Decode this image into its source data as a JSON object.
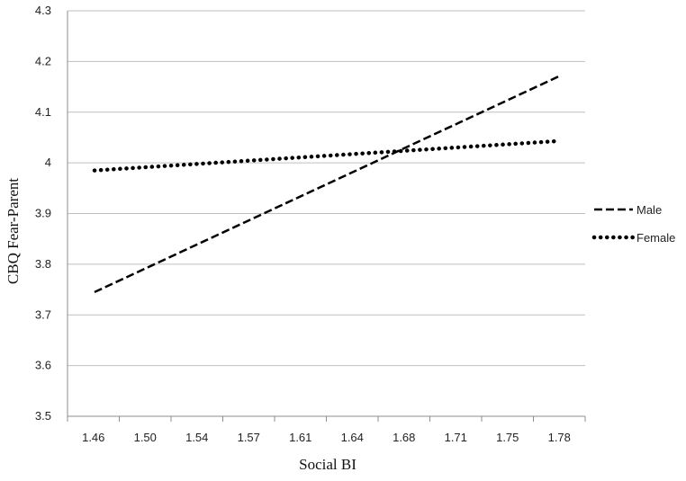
{
  "chart_data": {
    "type": "line",
    "title": "",
    "xlabel": "Social BI",
    "ylabel": "CBQ Fear-Parent",
    "categories": [
      "1.46",
      "1.50",
      "1.54",
      "1.57",
      "1.61",
      "1.64",
      "1.68",
      "1.71",
      "1.75",
      "1.78"
    ],
    "x_range": [
      1.46,
      1.78
    ],
    "ylim": [
      3.5,
      4.3
    ],
    "y_ticks": [
      "3.5",
      "3.6",
      "3.7",
      "3.8",
      "3.9",
      "4",
      "4.1",
      "4.2",
      "4.3"
    ],
    "grid": "horizontal",
    "legend_position": "right",
    "series": [
      {
        "name": "Male",
        "style": "dashed",
        "color": "#000000",
        "x": [
          1.46,
          1.78
        ],
        "y": [
          3.745,
          4.17
        ]
      },
      {
        "name": "Female",
        "style": "dotted",
        "color": "#000000",
        "x": [
          1.46,
          1.78
        ],
        "y": [
          3.985,
          4.043
        ]
      }
    ]
  }
}
